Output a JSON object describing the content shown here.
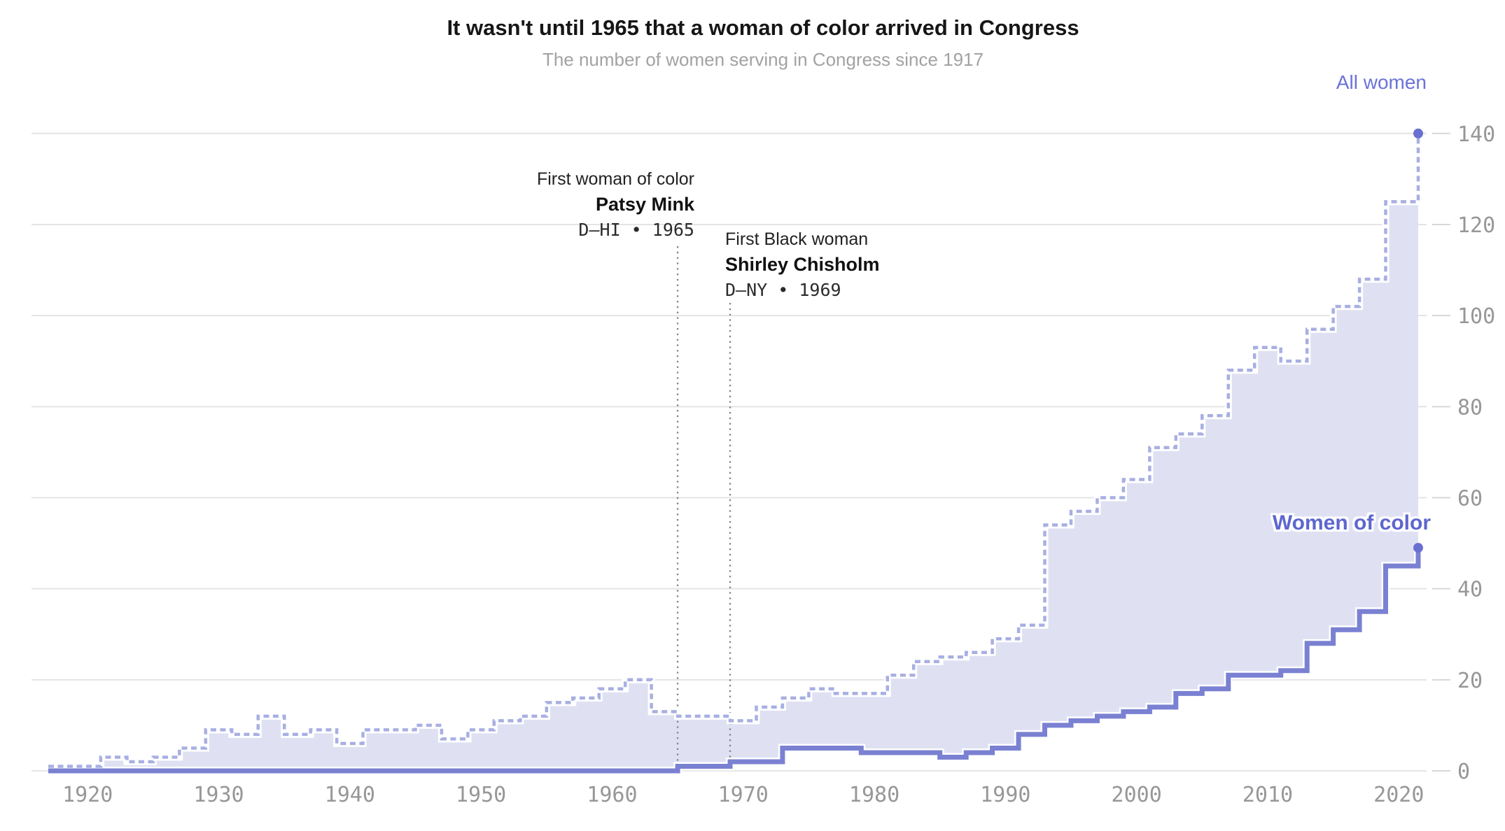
{
  "header": {
    "title": "It wasn't until 1965 that a woman of color arrived in Congress",
    "subtitle": "The number of women serving in Congress since 1917"
  },
  "chart_data": {
    "type": "area",
    "variant": "step-area-with-step-line",
    "title": "It wasn't until 1965 that a woman of color arrived in Congress",
    "subtitle": "The number of women serving in Congress since 1917",
    "x_years": [
      1917,
      1919,
      1921,
      1923,
      1925,
      1927,
      1929,
      1931,
      1933,
      1935,
      1937,
      1939,
      1941,
      1943,
      1945,
      1947,
      1949,
      1951,
      1953,
      1955,
      1957,
      1959,
      1961,
      1963,
      1965,
      1967,
      1969,
      1971,
      1973,
      1975,
      1977,
      1979,
      1981,
      1983,
      1985,
      1987,
      1989,
      1991,
      1993,
      1995,
      1997,
      1999,
      2001,
      2003,
      2005,
      2007,
      2009,
      2011,
      2013,
      2015,
      2017,
      2019,
      2021
    ],
    "series": [
      {
        "name": "All women",
        "style": "dashed-step",
        "line_color": "#a8afe2",
        "fill_color": "#dfe1f3",
        "end_value": 140,
        "values": [
          1,
          1,
          3,
          2,
          3,
          5,
          9,
          8,
          12,
          8,
          9,
          6,
          9,
          9,
          10,
          7,
          9,
          11,
          12,
          15,
          16,
          18,
          20,
          13,
          12,
          12,
          11,
          14,
          16,
          18,
          17,
          17,
          21,
          24,
          25,
          26,
          29,
          32,
          54,
          57,
          60,
          64,
          71,
          74,
          78,
          88,
          93,
          90,
          97,
          102,
          108,
          125,
          140
        ]
      },
      {
        "name": "Women of color",
        "style": "solid-step",
        "line_color": "#7a81d2",
        "end_value": 49,
        "values": [
          0,
          0,
          0,
          0,
          0,
          0,
          0,
          0,
          0,
          0,
          0,
          0,
          0,
          0,
          0,
          0,
          0,
          0,
          0,
          0,
          0,
          0,
          0,
          0,
          1,
          1,
          2,
          2,
          5,
          5,
          5,
          4,
          4,
          4,
          3,
          4,
          5,
          8,
          10,
          11,
          12,
          13,
          14,
          17,
          18,
          21,
          21,
          22,
          28,
          31,
          35,
          45,
          49
        ]
      }
    ],
    "ylim": [
      0,
      140
    ],
    "yticks": [
      0,
      20,
      40,
      60,
      80,
      100,
      120,
      140
    ],
    "xticks": [
      1920,
      1930,
      1940,
      1950,
      1960,
      1970,
      1980,
      1990,
      2000,
      2010,
      2020
    ],
    "grid": "horizontal",
    "grid_color": "#e4e4e4",
    "tick_label_color": "#979797",
    "dot_color": "#6a70d0",
    "legend_position": "line-end-labels",
    "end_labels": [
      {
        "text": "All women",
        "color": "#6b72d8"
      },
      {
        "text": "Women of color",
        "color": "#5d66cf"
      }
    ],
    "annotations": [
      {
        "year": 1965,
        "align": "right",
        "lines": [
          {
            "text": "First woman of color"
          },
          {
            "text": "Patsy Mink"
          },
          {
            "text": "D–HI • 1965"
          }
        ]
      },
      {
        "year": 1969,
        "align": "left",
        "lines": [
          {
            "text": "First Black woman"
          },
          {
            "text": "Shirley Chisholm"
          },
          {
            "text": "D–NY • 1969"
          }
        ]
      }
    ]
  }
}
